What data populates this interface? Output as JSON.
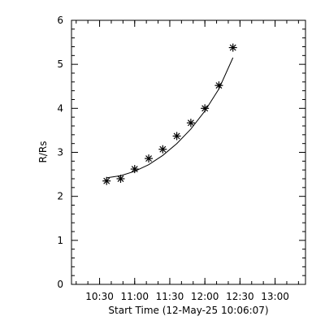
{
  "chart_data": {
    "type": "scatter",
    "title": "",
    "xlabel": "Start Time (12-May-25 10:06:07)",
    "ylabel": "R/Rs",
    "xlim": [
      "10:06",
      "13:26"
    ],
    "ylim": [
      0,
      6
    ],
    "x_ticks": [
      "10:30",
      "11:00",
      "11:30",
      "12:00",
      "12:30",
      "13:00"
    ],
    "y_ticks": [
      "0",
      "1",
      "2",
      "3",
      "4",
      "5",
      "6"
    ],
    "grid": false,
    "series": [
      {
        "marker": "asterisk",
        "x": [
          "10:36",
          "10:48",
          "11:00",
          "11:12",
          "11:24",
          "11:36",
          "11:48",
          "12:00",
          "12:12",
          "12:24"
        ],
        "y": [
          2.35,
          2.4,
          2.62,
          2.86,
          3.07,
          3.37,
          3.67,
          4.0,
          4.52,
          5.38
        ]
      },
      {
        "style": "line",
        "x": [
          "10:36",
          "10:48",
          "11:00",
          "11:12",
          "11:24",
          "11:36",
          "11:48",
          "12:00",
          "12:12",
          "12:24"
        ],
        "y": [
          2.42,
          2.47,
          2.57,
          2.72,
          2.93,
          3.2,
          3.53,
          3.94,
          4.44,
          5.15
        ]
      }
    ]
  }
}
